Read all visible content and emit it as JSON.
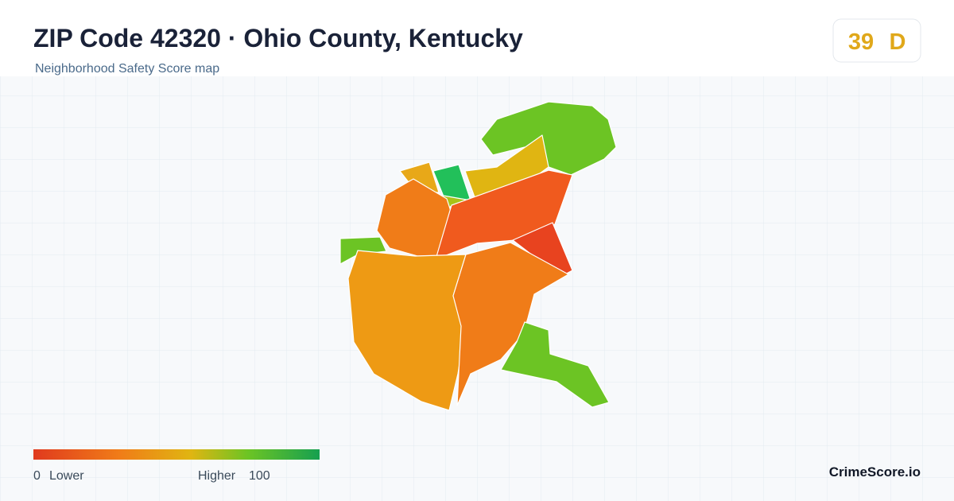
{
  "header": {
    "title": "ZIP Code 42320 · Ohio County, Kentucky",
    "subtitle": "Neighborhood Safety Score map"
  },
  "score": {
    "value": 39,
    "grade": "D"
  },
  "legend": {
    "min": 0,
    "min_label": "Lower",
    "max_label": "Higher",
    "max": 100
  },
  "footer": {
    "brand": "CrimeScore.io"
  }
}
